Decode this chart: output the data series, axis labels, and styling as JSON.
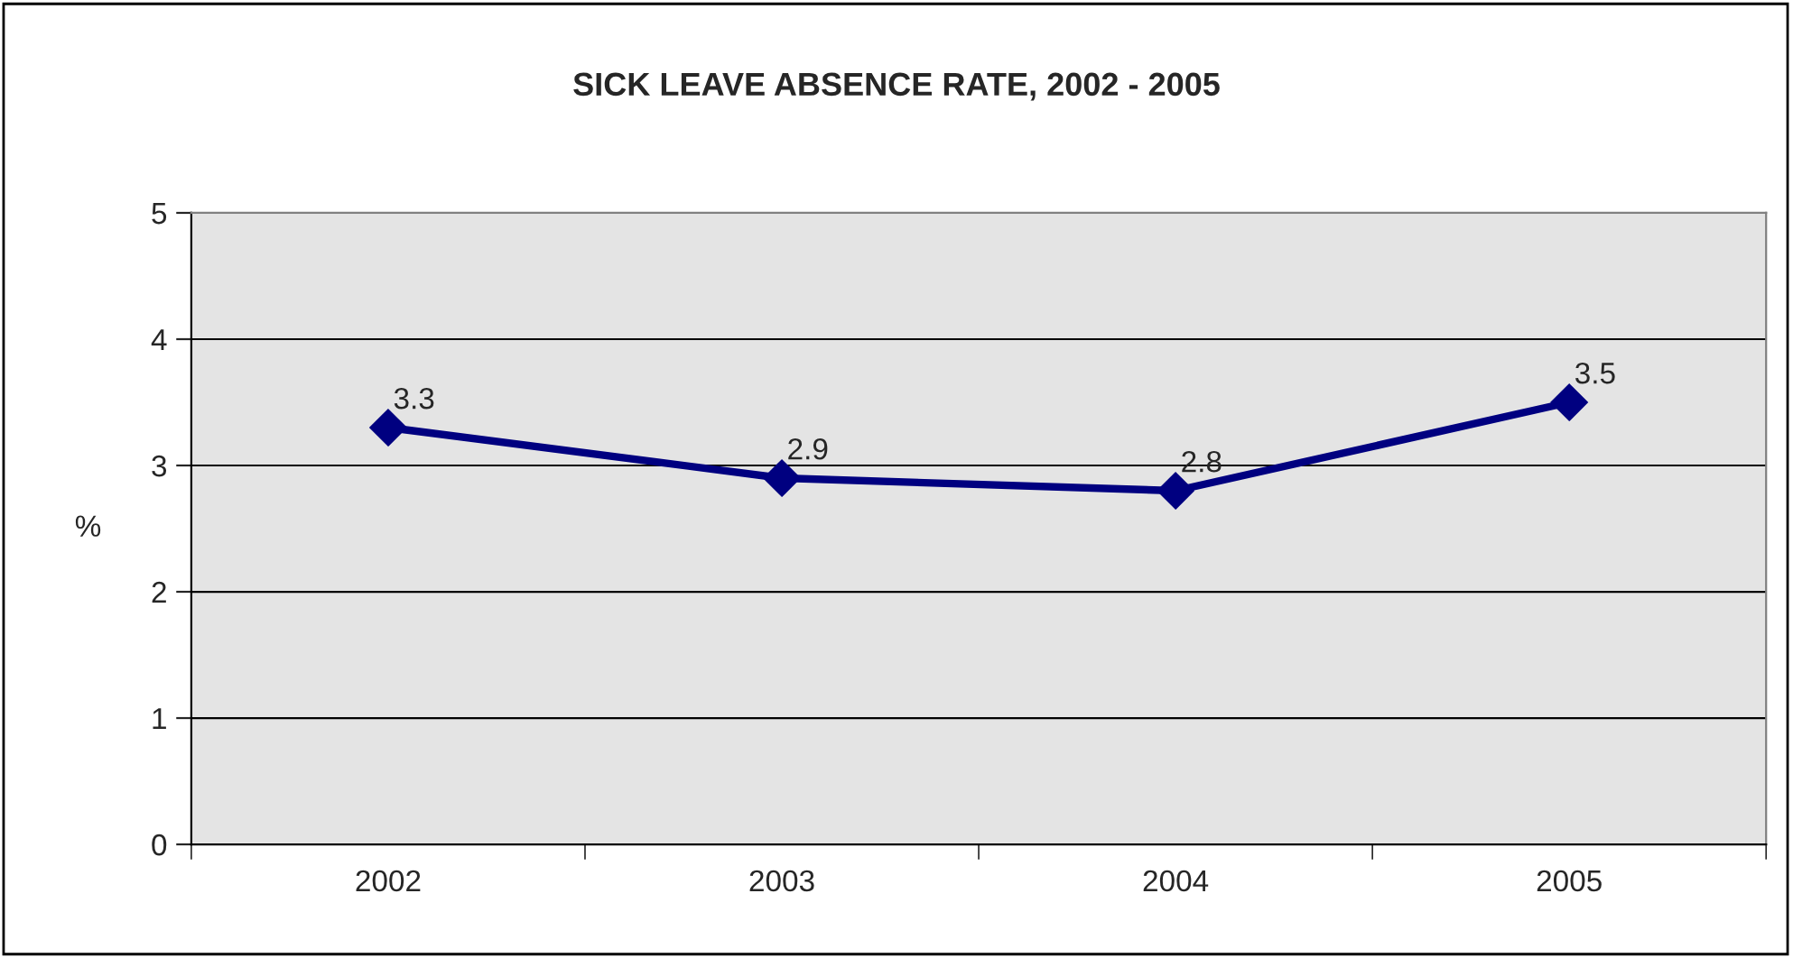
{
  "chart_data": {
    "type": "line",
    "title": "SICK LEAVE ABSENCE RATE, 2002 - 2005",
    "ylabel": "%",
    "categories": [
      "2002",
      "2003",
      "2004",
      "2005"
    ],
    "series": [
      {
        "color": "#000080",
        "values": [
          3.3,
          2.9,
          2.8,
          3.5
        ]
      }
    ],
    "ylim": [
      0,
      5
    ],
    "yticks": [
      0,
      1,
      2,
      3,
      4,
      5
    ],
    "grid": "y",
    "marker": "diamond",
    "line_style": "solid",
    "data_labels": true,
    "legend": false
  }
}
